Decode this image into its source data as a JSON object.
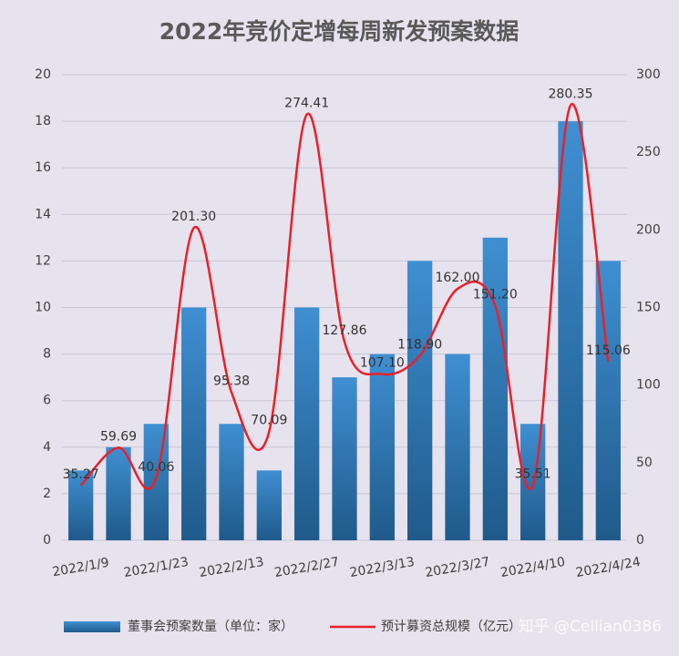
{
  "chart_data": {
    "type": "bar-line",
    "title": "2022年竞价定增每周新发预案数据",
    "categories": [
      "2022/1/9",
      null,
      "2022/1/23",
      null,
      "2022/2/13",
      null,
      "2022/2/27",
      null,
      "2022/3/13",
      null,
      "2022/3/27",
      null,
      "2022/4/10",
      null,
      "2022/4/24"
    ],
    "series": [
      {
        "name": "董事会预案数量（单位：家）",
        "type": "bar",
        "color": "#2e75b6",
        "values": [
          3,
          4,
          5,
          10,
          5,
          3,
          10,
          7,
          8,
          12,
          8,
          13,
          5,
          18,
          12
        ]
      },
      {
        "name": "预计募资总规模（亿元）",
        "type": "line",
        "axis": "y2",
        "color": "#e8202a",
        "values": [
          35.27,
          59.69,
          40.06,
          201.3,
          95.38,
          70.09,
          274.41,
          127.86,
          107.1,
          118.9,
          162,
          151.2,
          35.51,
          280.35,
          115.06
        ],
        "value_labels": [
          "35.27",
          "59.69",
          "40.06",
          "201.30",
          "95.38",
          "70.09",
          "274.41",
          "127.86",
          "107.10",
          "118.90",
          "162.00",
          "151.20",
          "35.51",
          "280.35",
          "115.06"
        ]
      }
    ],
    "ylim": [
      0,
      20
    ],
    "yticks": [
      0,
      2,
      4,
      6,
      8,
      10,
      12,
      14,
      16,
      18,
      20
    ],
    "y2lim": [
      0,
      300
    ],
    "y2ticks": [
      0,
      50,
      100,
      150,
      200,
      250,
      300
    ],
    "grid": true,
    "legend": "bottom",
    "watermark": "知乎 @Cellian0386"
  }
}
